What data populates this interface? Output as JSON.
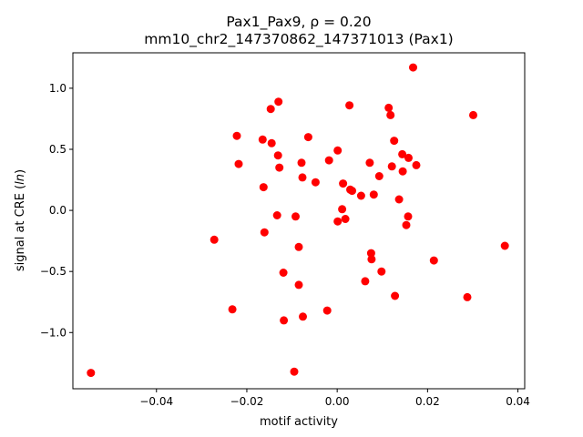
{
  "chart_data": {
    "type": "scatter",
    "title_line1": "Pax1_Pax9, ρ = 0.20",
    "title_line2": "mm10_chr2_147370862_147371013 (Pax1)",
    "xlabel": "motif activity",
    "ylabel": "signal at CRE (",
    "ylabel_italic": "ln",
    "ylabel_suffix": ")",
    "xlim": [
      -0.0585,
      0.0415
    ],
    "ylim": [
      -1.46,
      1.29
    ],
    "x_ticks": [
      -0.04,
      -0.02,
      0.0,
      0.02,
      0.04
    ],
    "x_tick_labels": [
      "−0.04",
      "−0.02",
      "0.00",
      "0.02",
      "0.04"
    ],
    "y_ticks": [
      -1.0,
      -0.5,
      0.0,
      0.5,
      1.0
    ],
    "y_tick_labels": [
      "−1.0",
      "−0.5",
      "0.0",
      "0.5",
      "1.0"
    ],
    "grid": false,
    "marker_color": "#ff0000",
    "series": [
      {
        "points": [
          [
            -0.0545,
            -1.33
          ],
          [
            -0.0272,
            -0.24
          ],
          [
            -0.0232,
            -0.81
          ],
          [
            -0.0222,
            0.61
          ],
          [
            -0.0218,
            0.38
          ],
          [
            -0.0165,
            0.58
          ],
          [
            -0.0163,
            0.19
          ],
          [
            -0.0161,
            -0.18
          ],
          [
            -0.0147,
            0.83
          ],
          [
            -0.0145,
            0.55
          ],
          [
            -0.013,
            0.89
          ],
          [
            -0.0131,
            0.45
          ],
          [
            -0.0128,
            0.35
          ],
          [
            -0.0133,
            -0.04
          ],
          [
            -0.0119,
            -0.51
          ],
          [
            -0.0118,
            -0.9
          ],
          [
            -0.0095,
            -1.32
          ],
          [
            -0.0092,
            -0.05
          ],
          [
            -0.0085,
            -0.3
          ],
          [
            -0.0085,
            -0.61
          ],
          [
            -0.0079,
            0.39
          ],
          [
            -0.0077,
            0.27
          ],
          [
            -0.0076,
            -0.87
          ],
          [
            -0.0064,
            0.6
          ],
          [
            -0.0048,
            0.23
          ],
          [
            -0.0022,
            -0.82
          ],
          [
            -0.0018,
            0.41
          ],
          [
            0.0001,
            0.49
          ],
          [
            0.0001,
            -0.09
          ],
          [
            0.0011,
            0.01
          ],
          [
            0.0013,
            0.22
          ],
          [
            0.0018,
            -0.07
          ],
          [
            0.0027,
            0.86
          ],
          [
            0.0029,
            0.17
          ],
          [
            0.0033,
            0.16
          ],
          [
            0.0053,
            0.12
          ],
          [
            0.0062,
            -0.58
          ],
          [
            0.0072,
            0.39
          ],
          [
            0.0075,
            -0.35
          ],
          [
            0.0076,
            -0.4
          ],
          [
            0.0081,
            0.13
          ],
          [
            0.0093,
            0.28
          ],
          [
            0.0098,
            -0.5
          ],
          [
            0.0114,
            0.84
          ],
          [
            0.0118,
            0.78
          ],
          [
            0.0121,
            0.36
          ],
          [
            0.0126,
            0.57
          ],
          [
            0.0128,
            -0.7
          ],
          [
            0.0137,
            0.09
          ],
          [
            0.0144,
            0.46
          ],
          [
            0.0145,
            0.32
          ],
          [
            0.0153,
            -0.12
          ],
          [
            0.0157,
            -0.05
          ],
          [
            0.0158,
            0.43
          ],
          [
            0.0168,
            1.17
          ],
          [
            0.0175,
            0.37
          ],
          [
            0.0214,
            -0.41
          ],
          [
            0.0288,
            -0.71
          ],
          [
            0.0301,
            0.78
          ],
          [
            0.0371,
            -0.29
          ]
        ]
      }
    ]
  }
}
